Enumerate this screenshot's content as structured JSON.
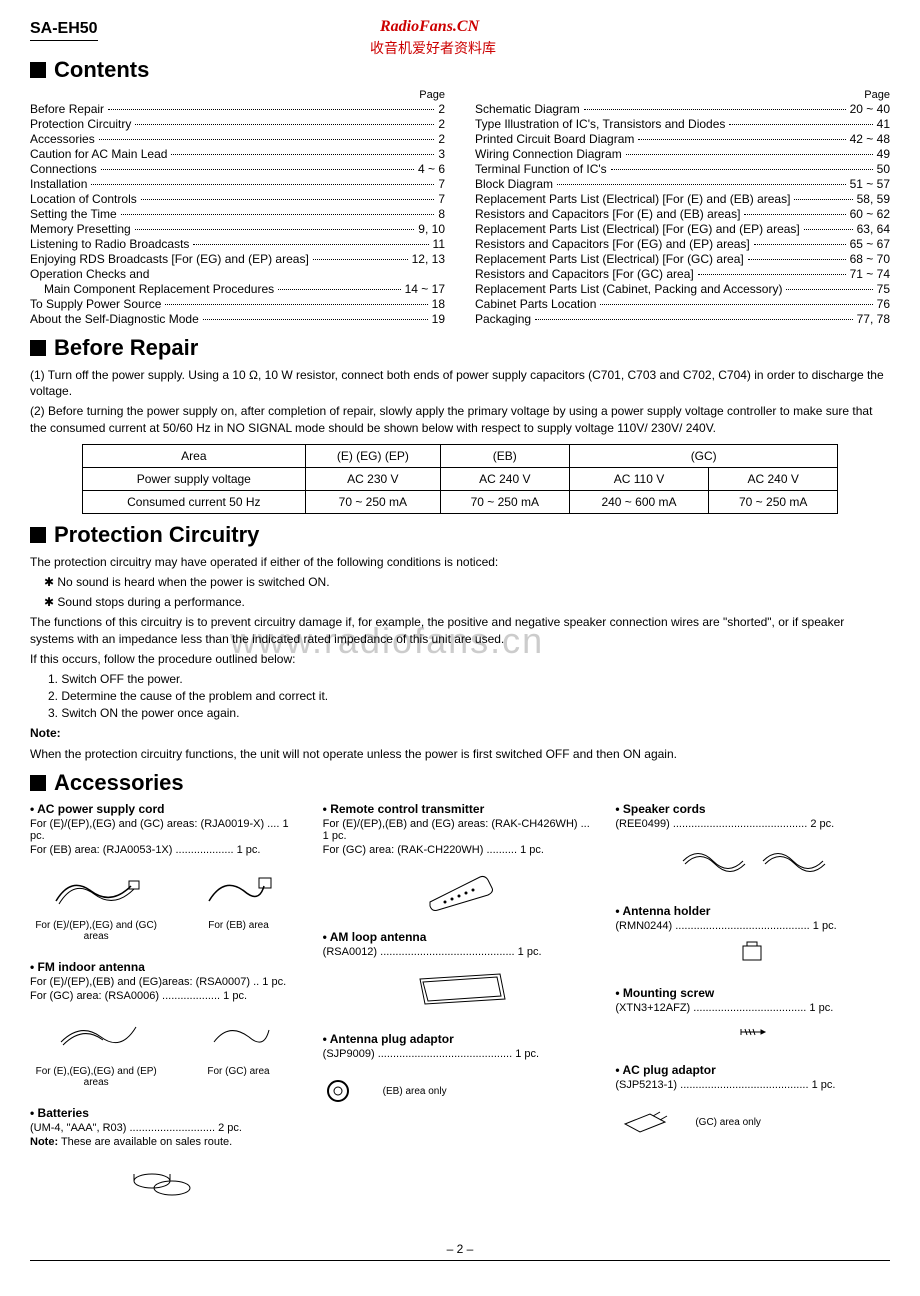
{
  "model": "SA-EH50",
  "watermark1": "RadioFans.CN",
  "watermark2": "收音机爱好者资料库",
  "watermark3": "www.radiofans.cn",
  "page_label": "Page",
  "page_number": "– 2 –",
  "headings": {
    "contents": "Contents",
    "before_repair": "Before Repair",
    "protection": "Protection Circuitry",
    "accessories": "Accessories"
  },
  "toc_left": [
    {
      "label": "Before Repair",
      "pg": "2"
    },
    {
      "label": "Protection Circuitry",
      "pg": "2"
    },
    {
      "label": "Accessories",
      "pg": "2"
    },
    {
      "label": "Caution for AC Main Lead",
      "pg": "3"
    },
    {
      "label": "Connections",
      "pg": "4 ~ 6"
    },
    {
      "label": "Installation",
      "pg": "7"
    },
    {
      "label": "Location of Controls",
      "pg": "7"
    },
    {
      "label": "Setting the Time",
      "pg": "8"
    },
    {
      "label": "Memory Presetting",
      "pg": "9, 10"
    },
    {
      "label": "Listening to Radio Broadcasts",
      "pg": "11"
    },
    {
      "label": "Enjoying RDS Broadcasts [For (EG) and (EP) areas]",
      "pg": "12, 13"
    },
    {
      "label": "Operation Checks and",
      "pg": ""
    },
    {
      "label": "Main Component Replacement Procedures",
      "pg": "14 ~ 17",
      "indent": true
    },
    {
      "label": "To Supply Power Source",
      "pg": "18"
    },
    {
      "label": "About the Self-Diagnostic Mode",
      "pg": "19"
    }
  ],
  "toc_right": [
    {
      "label": "Schematic Diagram",
      "pg": "20 ~ 40"
    },
    {
      "label": "Type Illustration of IC's, Transistors and Diodes",
      "pg": "41"
    },
    {
      "label": "Printed Circuit Board Diagram",
      "pg": "42 ~ 48"
    },
    {
      "label": "Wiring Connection Diagram",
      "pg": "49"
    },
    {
      "label": "Terminal Function of IC's",
      "pg": "50"
    },
    {
      "label": "Block Diagram",
      "pg": "51 ~ 57"
    },
    {
      "label": "Replacement Parts List (Electrical) [For (E) and (EB) areas]",
      "pg": "58, 59"
    },
    {
      "label": "Resistors and Capacitors [For (E) and (EB) areas]",
      "pg": "60 ~ 62"
    },
    {
      "label": "Replacement Parts List (Electrical) [For (EG) and (EP) areas]",
      "pg": "63, 64"
    },
    {
      "label": "Resistors and Capacitors [For (EG) and (EP) areas]",
      "pg": "65 ~ 67"
    },
    {
      "label": "Replacement Parts List (Electrical) [For (GC) area]",
      "pg": "68 ~ 70"
    },
    {
      "label": "Resistors and Capacitors [For (GC) area]",
      "pg": "71 ~ 74"
    },
    {
      "label": "Replacement Parts List (Cabinet, Packing and Accessory)",
      "pg": "75"
    },
    {
      "label": "Cabinet Parts Location",
      "pg": "76"
    },
    {
      "label": "Packaging",
      "pg": "77, 78"
    }
  ],
  "before_repair": {
    "p1": "(1) Turn off the power supply. Using a 10 Ω, 10 W resistor, connect both ends of power supply capacitors (C701, C703 and C702, C704) in order to discharge the voltage.",
    "p2": "(2) Before turning the power supply on, after completion of repair, slowly apply the primary voltage by using a power supply voltage controller to make sure that the consumed current at 50/60 Hz in NO SIGNAL mode should be shown below with respect to supply voltage 110V/ 230V/ 240V.",
    "table": {
      "headers": [
        "Area",
        "(E) (EG) (EP)",
        "(EB)",
        "(GC)",
        ""
      ],
      "rows": [
        [
          "Power supply voltage",
          "AC 230 V",
          "AC 240 V",
          "AC 110 V",
          "AC 240 V"
        ],
        [
          "Consumed current 50 Hz",
          "70 ~ 250 mA",
          "70 ~ 250 mA",
          "240 ~ 600 mA",
          "70 ~ 250 mA"
        ]
      ]
    }
  },
  "protection": {
    "intro": "The protection circuitry may have operated if either of the following conditions is noticed:",
    "c1": "No sound is heard when the power is switched ON.",
    "c2": "Sound stops during a performance.",
    "func": "The functions of this circuitry is to prevent circuitry damage if, for example, the positive and negative speaker connection wires are \"shorted\", or if speaker systems with an impedance less than the indicated rated impedance of this unit are used.",
    "ifthis": "If this occurs, follow the procedure outlined below:",
    "s1": "1. Switch OFF the power.",
    "s2": "2. Determine the cause of the problem and correct it.",
    "s3": "3. Switch ON the power once again.",
    "note_label": "Note:",
    "note": "When the protection circuitry functions, the unit will not operate unless the power is first switched OFF and then ON again."
  },
  "accessories": {
    "ac_cord": {
      "title": "AC power supply cord",
      "l1": "For (E)/(EP),(EG) and (GC) areas: (RJA0019-X) .... 1 pc.",
      "l2": "For (EB) area: (RJA0053-1X) ................... 1 pc.",
      "cap1": "For (E)/(EP),(EG) and (GC) areas",
      "cap2": "For (EB) area"
    },
    "remote": {
      "title": "Remote control transmitter",
      "l1": "For (E)/(EP),(EB) and (EG) areas: (RAK-CH426WH) ... 1 pc.",
      "l2": "For (GC) area: (RAK-CH220WH) .......... 1 pc."
    },
    "speaker": {
      "title": "Speaker cords",
      "l1": "(REE0499) ............................................ 2 pc."
    },
    "fm": {
      "title": "FM indoor antenna",
      "l1": "For (E)/(EP),(EB) and (EG)areas: (RSA0007) .. 1 pc.",
      "l2": "For (GC) area: (RSA0006) ................... 1 pc.",
      "cap1": "For (E),(EG),(EG) and (EP) areas",
      "cap2": "For (GC) area"
    },
    "am": {
      "title": "AM loop antenna",
      "l1": "(RSA0012) ............................................ 1 pc."
    },
    "holder": {
      "title": "Antenna holder",
      "l1": "(RMN0244) ............................................ 1 pc."
    },
    "screw": {
      "title": "Mounting screw",
      "l1": "(XTN3+12AFZ) ..................................... 1 pc."
    },
    "batt": {
      "title": "Batteries",
      "l1": "(UM-4, \"AAA\", R03) ............................ 2 pc.",
      "note_label": "Note:",
      "note": " These are available on sales route."
    },
    "antplug": {
      "title": "Antenna plug adaptor",
      "l1": "(SJP9009) ............................................ 1 pc.",
      "cap": "(EB) area only"
    },
    "acplug": {
      "title": "AC plug adaptor",
      "l1": "(SJP5213-1) .......................................... 1 pc.",
      "cap": "(GC) area only"
    }
  }
}
